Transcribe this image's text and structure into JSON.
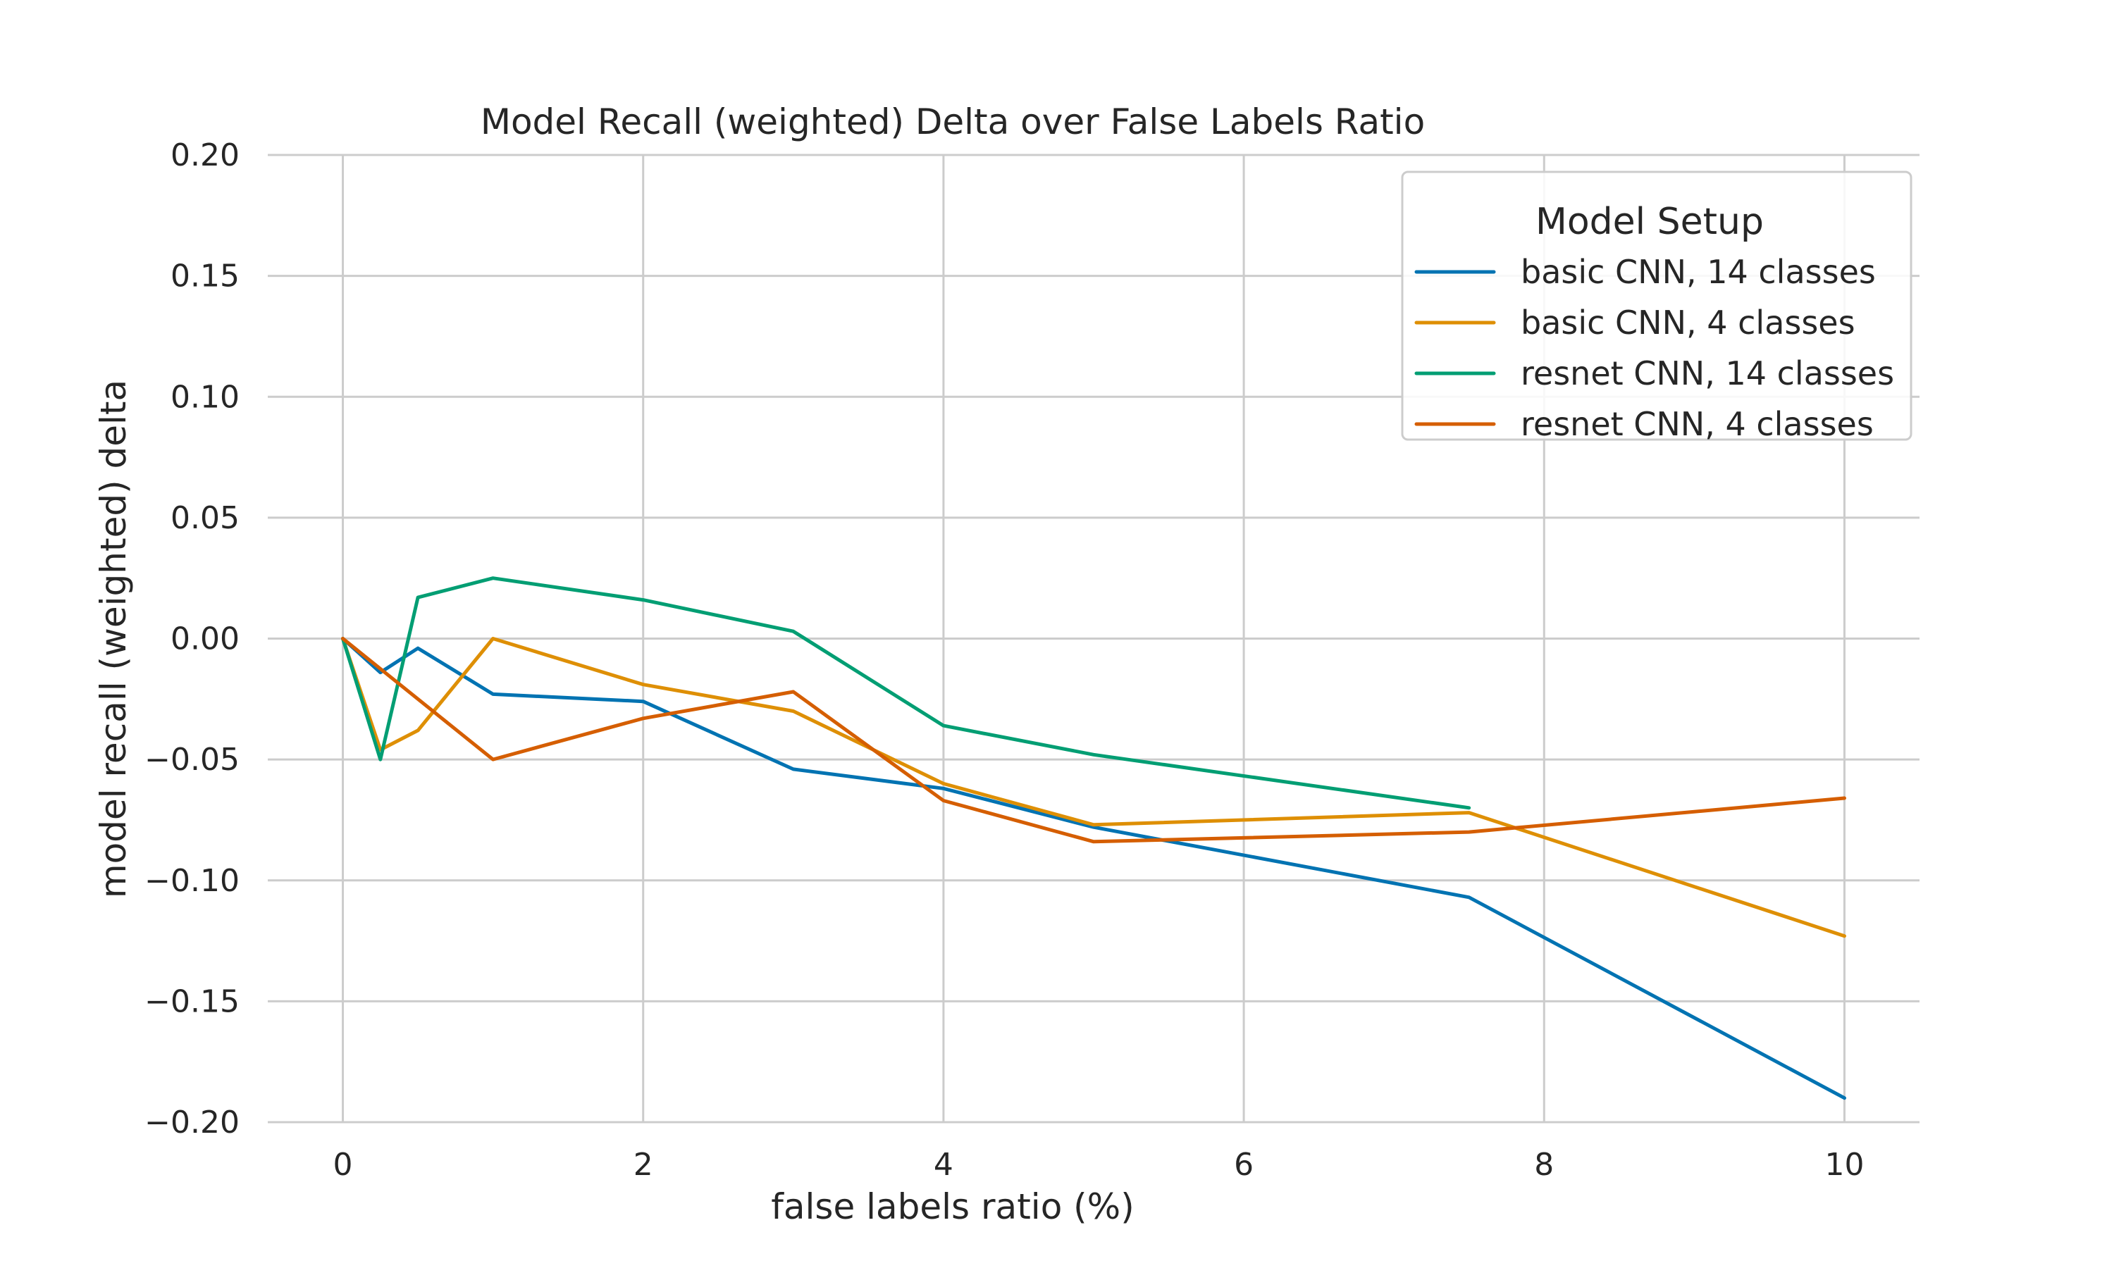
{
  "chart_data": {
    "type": "line",
    "title": "Model Recall (weighted) Delta over False Labels Ratio",
    "xlabel": "false labels ratio (%)",
    "ylabel": "model recall (weighted) delta",
    "xlim": [
      -0.5,
      10.5
    ],
    "ylim": [
      -0.2,
      0.2
    ],
    "xticks": [
      0,
      2,
      4,
      6,
      8,
      10
    ],
    "xtick_labels": [
      "0",
      "2",
      "4",
      "6",
      "8",
      "10"
    ],
    "yticks": [
      -0.2,
      -0.15,
      -0.1,
      -0.05,
      0,
      0.05,
      0.1,
      0.15,
      0.2
    ],
    "ytick_labels": [
      "−0.20",
      "−0.15",
      "−0.10",
      "−0.05",
      "0.00",
      "0.05",
      "0.10",
      "0.15",
      "0.20"
    ],
    "grid": true,
    "legend": {
      "title": "Model Setup",
      "position": "top-right"
    },
    "series": [
      {
        "name": "basic CNN, 14 classes",
        "color": "#0173b2",
        "x": [
          0,
          0.25,
          0.5,
          1,
          2,
          3,
          4,
          5,
          7.5,
          10
        ],
        "y": [
          0,
          -0.014,
          -0.004,
          -0.023,
          -0.026,
          -0.054,
          -0.062,
          -0.078,
          -0.107,
          -0.19
        ]
      },
      {
        "name": "basic CNN, 4 classes",
        "color": "#de8f05",
        "x": [
          0,
          0.25,
          0.5,
          1,
          2,
          3,
          4,
          5,
          7.5,
          10
        ],
        "y": [
          0,
          -0.046,
          -0.038,
          0,
          -0.019,
          -0.03,
          -0.06,
          -0.077,
          -0.072,
          -0.123
        ]
      },
      {
        "name": "resnet CNN, 14 classes",
        "color": "#029e73",
        "x": [
          0,
          0.25,
          0.5,
          1,
          2,
          3,
          4,
          5,
          7.5
        ],
        "y": [
          0,
          -0.05,
          0.017,
          0.025,
          0.016,
          0.003,
          -0.036,
          -0.048,
          -0.07
        ]
      },
      {
        "name": "resnet CNN, 4 classes",
        "color": "#d55e00",
        "x": [
          0,
          1,
          2,
          3,
          4,
          5,
          7.5,
          10
        ],
        "y": [
          0,
          -0.05,
          -0.033,
          -0.022,
          -0.067,
          -0.084,
          -0.08,
          -0.066
        ]
      }
    ]
  }
}
